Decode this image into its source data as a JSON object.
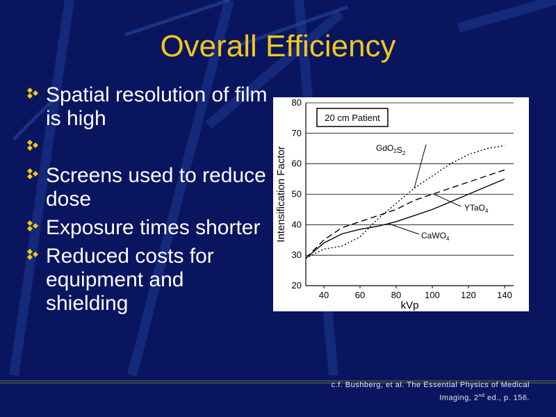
{
  "slide": {
    "title": "Overall Efficiency",
    "bullets": [
      "Spatial resolution of film is high",
      "",
      "Screens used to reduce dose",
      "Exposure times shorter",
      "Reduced costs for equipment and shielding"
    ],
    "citation": {
      "line1": "c.f. Bushberg, et al. The Essential Physics of Medical",
      "line2_pre": "Imaging, 2",
      "line2_sup": "nd",
      "line2_post": " ed., p. 156."
    },
    "colors": {
      "background": "#0a1560",
      "title": "#f2c818",
      "bullet_mark": "#f2c818",
      "text": "#ffffff"
    }
  },
  "chart_data": {
    "type": "line",
    "inset_label": "20 cm Patient",
    "xlabel": "kVp",
    "ylabel": "Intensification Factor",
    "xlim": [
      30,
      145
    ],
    "ylim": [
      20,
      80
    ],
    "xticks": [
      40,
      60,
      80,
      100,
      120,
      140
    ],
    "yticks": [
      20,
      30,
      40,
      50,
      60,
      70,
      80
    ],
    "grid": "horizontal",
    "series": [
      {
        "name": "Gd2O2S",
        "name_base": "Gd",
        "name_parts": [
          [
            "Gd",
            ""
          ],
          [
            "O",
            "2"
          ],
          [
            "S",
            "2"
          ]
        ],
        "style": "dotted",
        "x": [
          30,
          40,
          50,
          60,
          70,
          80,
          90,
          100,
          110,
          120,
          130,
          140
        ],
        "y": [
          29,
          32,
          33,
          36,
          42,
          47,
          52,
          56,
          60,
          63,
          65,
          66
        ]
      },
      {
        "name": "YTaO4",
        "name_parts": [
          [
            "YTaO",
            ""
          ],
          [
            "",
            "4"
          ]
        ],
        "style": "dashed",
        "x": [
          30,
          40,
          50,
          60,
          70,
          80,
          90,
          100,
          110,
          120,
          130,
          140
        ],
        "y": [
          29,
          35,
          39,
          41,
          43,
          45,
          48,
          50,
          52,
          54,
          56,
          58
        ]
      },
      {
        "name": "CaWO4",
        "name_parts": [
          [
            "CaWO",
            ""
          ],
          [
            "",
            "4"
          ]
        ],
        "style": "solid",
        "x": [
          30,
          40,
          50,
          60,
          70,
          80,
          90,
          100,
          110,
          120,
          130,
          140
        ],
        "y": [
          29,
          34,
          37,
          38.5,
          39.5,
          41,
          43,
          45,
          47.5,
          50,
          52.5,
          55
        ]
      }
    ]
  }
}
